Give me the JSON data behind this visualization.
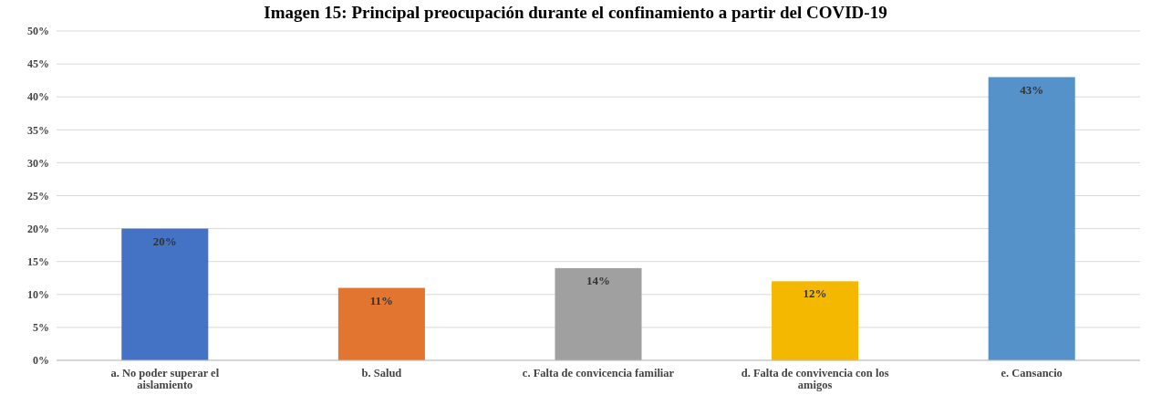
{
  "chart_data": {
    "type": "bar",
    "title": "Imagen 15: Principal preocupación durante el confinamiento a partir del COVID-19",
    "categories": [
      "a. No poder superar el aislamiento",
      "b. Salud",
      "c. Falta de convicencia familiar",
      "d. Falta de convivencia con los amigos",
      "e. Cansancio"
    ],
    "values": [
      20,
      11,
      14,
      12,
      43
    ],
    "colors": [
      "#4472c4",
      "#e2752f",
      "#a0a0a0",
      "#f5b800",
      "#5592ca"
    ],
    "value_labels": [
      "20%",
      "11%",
      "14%",
      "12%",
      "43%"
    ],
    "ylim": [
      0,
      50
    ],
    "yticks": [
      {
        "value": 0,
        "label": "0%"
      },
      {
        "value": 5,
        "label": "5%"
      },
      {
        "value": 10,
        "label": "10%"
      },
      {
        "value": 15,
        "label": "15%"
      },
      {
        "value": 20,
        "label": "20%"
      },
      {
        "value": 25,
        "label": "25%"
      },
      {
        "value": 30,
        "label": "30%"
      },
      {
        "value": 35,
        "label": "35%"
      },
      {
        "value": 40,
        "label": "40%"
      },
      {
        "value": 45,
        "label": "45%"
      },
      {
        "value": 50,
        "label": "50%"
      }
    ],
    "grid": "y"
  }
}
